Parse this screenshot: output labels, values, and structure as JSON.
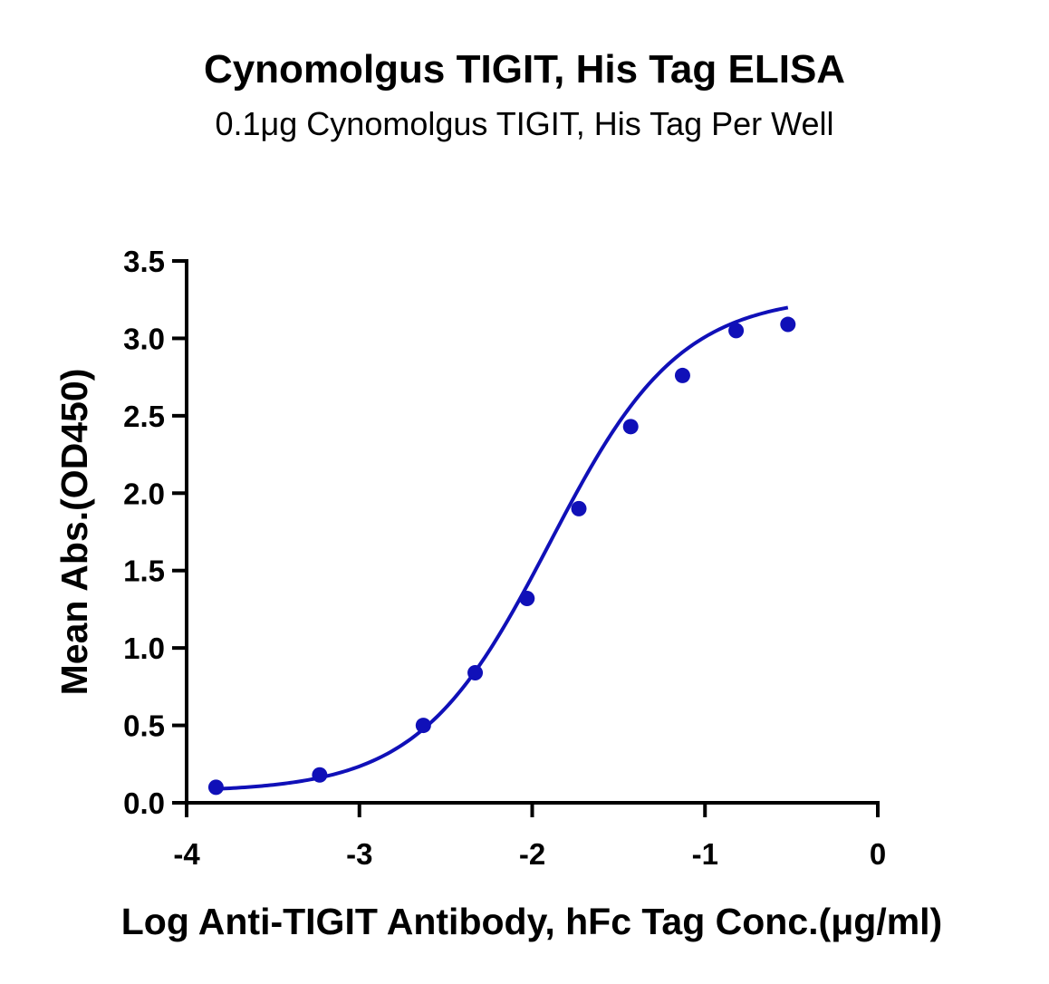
{
  "chart_data": {
    "type": "scatter",
    "title": "Cynomolgus TIGIT, His Tag ELISA",
    "subtitle": "0.1μg Cynomolgus TIGIT, His Tag Per Well",
    "xlabel": "Log Anti-TIGIT Antibody, hFc Tag Conc.(μg/ml)",
    "ylabel": "Mean Abs.(OD450)",
    "xlim": [
      -4,
      0
    ],
    "ylim": [
      0,
      3.5
    ],
    "x_ticks": [
      "-4",
      "-3",
      "-2",
      "-1",
      "0"
    ],
    "y_ticks": [
      "0.0",
      "0.5",
      "1.0",
      "1.5",
      "2.0",
      "2.5",
      "3.0",
      "3.5"
    ],
    "grid": false,
    "legend": "none",
    "series": [
      {
        "x": [
          -3.83,
          -3.23,
          -2.63,
          -2.33,
          -2.03,
          -1.73,
          -1.43,
          -1.13,
          -0.82,
          -0.52
        ],
        "y": [
          0.1,
          0.18,
          0.5,
          0.84,
          1.32,
          1.9,
          2.43,
          2.76,
          3.05,
          3.09
        ],
        "color": "#1010b8",
        "fit": "4PL"
      }
    ]
  }
}
